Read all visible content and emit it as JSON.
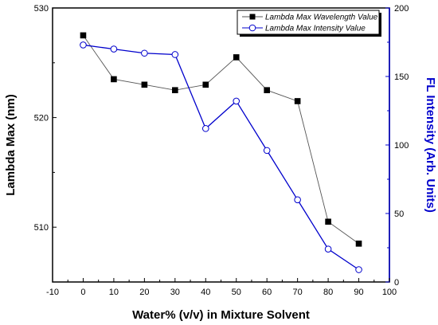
{
  "chart_data": {
    "type": "line",
    "title": "",
    "xlabel": "Water% (v/v) in Mixture Solvent",
    "ylabel_left": "Lambda Max (nm)",
    "ylabel_right": "FL Intensity (Arb. Units)",
    "xlim": [
      -10,
      100
    ],
    "ylim_left": [
      505,
      530
    ],
    "ylim_right": [
      0,
      200
    ],
    "x_ticks": [
      -10,
      0,
      10,
      20,
      30,
      40,
      50,
      60,
      70,
      80,
      90,
      100
    ],
    "x_tick_labels": [
      "-10",
      "0",
      "10",
      "20",
      "30",
      "40",
      "50",
      "60",
      "70",
      "80",
      "90",
      "100"
    ],
    "y_left_ticks": [
      510,
      520,
      530
    ],
    "y_left_tick_labels": [
      "510",
      "520",
      "530"
    ],
    "y_right_ticks": [
      0,
      50,
      100,
      150,
      200
    ],
    "y_right_tick_labels": [
      "0",
      "50",
      "100",
      "150",
      "200"
    ],
    "grid": false,
    "legend_position": "top-right",
    "x": [
      0,
      10,
      20,
      30,
      40,
      50,
      60,
      70,
      80,
      90
    ],
    "series": [
      {
        "name": "Lambda Max Wavelength Value",
        "axis": "left",
        "marker": "filled-square",
        "color": "#000000",
        "line_color": "#555555",
        "values": [
          527.5,
          523.5,
          523.0,
          522.5,
          523.0,
          525.5,
          522.5,
          521.5,
          510.5,
          508.5
        ]
      },
      {
        "name": "Lambda Max Intensity Value",
        "axis": "right",
        "marker": "open-circle",
        "color": "#0000cc",
        "line_color": "#0000cc",
        "values": [
          173,
          170,
          167,
          166,
          112,
          132,
          96,
          60,
          24,
          9
        ]
      }
    ],
    "right_axis_color": "#0000cc"
  }
}
